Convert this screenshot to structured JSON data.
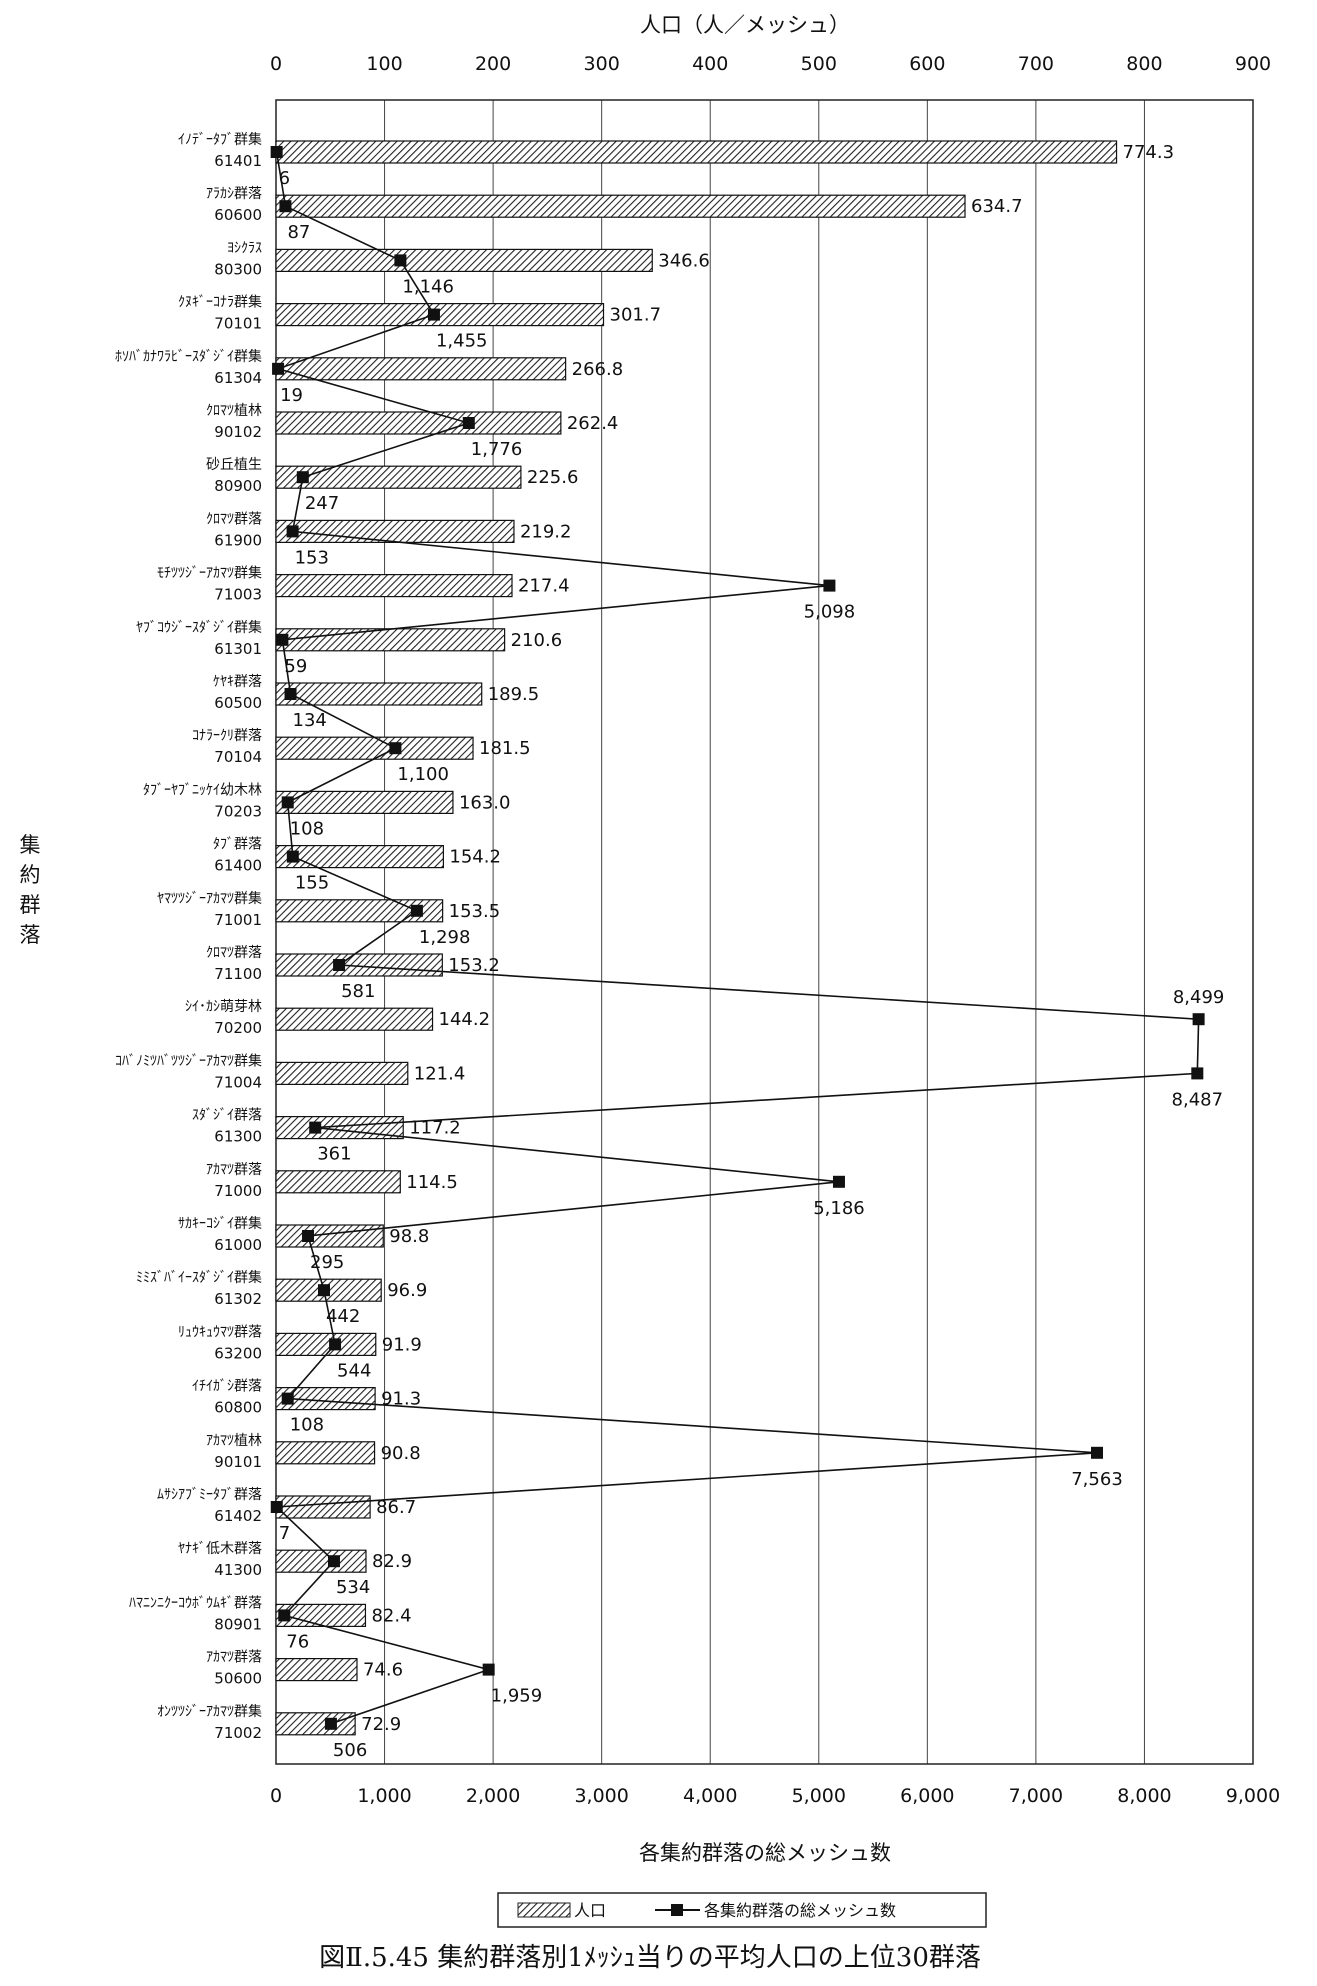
{
  "chart_data": {
    "type": "bar",
    "title": "図Ⅱ.5.45 集約群落別1ﾒｯｼｭ当りの平均人口の上位30群落",
    "top_axis_label": "人口（人／メッシュ）",
    "bottom_axis_label": "各集約群落の総メッシュ数",
    "y_axis_label": "集約群落",
    "top_ticks": [
      "0",
      "100",
      "200",
      "300",
      "400",
      "500",
      "600",
      "700",
      "800",
      "900"
    ],
    "bottom_ticks": [
      "0",
      "1,000",
      "2,000",
      "3,000",
      "4,000",
      "5,000",
      "6,000",
      "7,000",
      "8,000",
      "9,000"
    ],
    "top_range": [
      0,
      900
    ],
    "bottom_range": [
      0,
      9000
    ],
    "legend": {
      "bar_label": "人口",
      "line_label": "各集約群落の総メッシュ数",
      "placement": "bottom-center"
    },
    "categories": [
      {
        "name": "ｲﾉﾃﾞｰﾀﾌﾞ群集",
        "code": "61401"
      },
      {
        "name": "ｱﾗｶｼ群落",
        "code": "60600"
      },
      {
        "name": "ﾖｼｸﾗｽ",
        "code": "80300"
      },
      {
        "name": "ｸﾇｷﾞｰｺﾅﾗ群集",
        "code": "70101"
      },
      {
        "name": "ﾎｿﾊﾞｶﾅﾜﾗﾋﾞｰｽﾀﾞｼﾞｲ群集",
        "code": "61304"
      },
      {
        "name": "ｸﾛﾏﾂ植林",
        "code": "90102"
      },
      {
        "name": "砂丘植生",
        "code": "80900"
      },
      {
        "name": "ｸﾛﾏﾂ群落",
        "code": "61900"
      },
      {
        "name": "ﾓﾁﾂﾂｼﾞｰｱｶﾏﾂ群集",
        "code": "71003"
      },
      {
        "name": "ﾔﾌﾞｺｳｼﾞｰｽﾀﾞｼﾞｲ群集",
        "code": "61301"
      },
      {
        "name": "ｹﾔｷ群落",
        "code": "60500"
      },
      {
        "name": "ｺﾅﾗｰｸﾘ群落",
        "code": "70104"
      },
      {
        "name": "ﾀﾌﾞｰﾔﾌﾞﾆｯｹｲ幼木林",
        "code": "70203"
      },
      {
        "name": "ﾀﾌﾞ群落",
        "code": "61400"
      },
      {
        "name": "ﾔﾏﾂﾂｼﾞｰｱｶﾏﾂ群集",
        "code": "71001"
      },
      {
        "name": "ｸﾛﾏﾂ群落",
        "code": "71100"
      },
      {
        "name": "ｼｲ･ｶｼ萌芽林",
        "code": "70200"
      },
      {
        "name": "ｺﾊﾞﾉﾐﾂﾊﾞﾂﾂｼﾞｰｱｶﾏﾂ群集",
        "code": "71004"
      },
      {
        "name": "ｽﾀﾞｼﾞｲ群落",
        "code": "61300"
      },
      {
        "name": "ｱｶﾏﾂ群落",
        "code": "71000"
      },
      {
        "name": "ｻｶｷｰｺｼﾞｲ群集",
        "code": "61000"
      },
      {
        "name": "ﾐﾐｽﾞﾊﾞｲｰｽﾀﾞｼﾞｲ群集",
        "code": "61302"
      },
      {
        "name": "ﾘｭｳｷｭｳﾏﾂ群落",
        "code": "63200"
      },
      {
        "name": "ｲﾁｲｶﾞｼ群落",
        "code": "60800"
      },
      {
        "name": "ｱｶﾏﾂ植林",
        "code": "90101"
      },
      {
        "name": "ﾑｻｼｱﾌﾞﾐｰﾀﾌﾞ群落",
        "code": "61402"
      },
      {
        "name": "ﾔﾅｷﾞ低木群落",
        "code": "41300"
      },
      {
        "name": "ﾊﾏﾆﾝﾆｸｰｺｳﾎﾞｳﾑｷﾞ群落",
        "code": "80901"
      },
      {
        "name": "ｱｶﾏﾂ群落",
        "code": "50600"
      },
      {
        "name": "ｵﾝﾂﾂｼﾞｰｱｶﾏﾂ群集",
        "code": "71002"
      }
    ],
    "series": [
      {
        "name": "人口",
        "axis": "top",
        "type": "bar",
        "values": [
          774.3,
          634.7,
          346.6,
          301.7,
          266.8,
          262.4,
          225.6,
          219.2,
          217.4,
          210.6,
          189.5,
          181.5,
          163.0,
          154.2,
          153.5,
          153.2,
          144.2,
          121.4,
          117.2,
          114.5,
          98.8,
          96.9,
          91.9,
          91.3,
          90.8,
          86.7,
          82.9,
          82.4,
          74.6,
          72.9
        ],
        "labels": [
          "774.3",
          "634.7",
          "346.6",
          "301.7",
          "266.8",
          "262.4",
          "225.6",
          "219.2",
          "217.4",
          "210.6",
          "189.5",
          "181.5",
          "163.0",
          "154.2",
          "153.5",
          "153.2",
          "144.2",
          "121.4",
          "117.2",
          "114.5",
          "98.8",
          "96.9",
          "91.9",
          "91.3",
          "90.8",
          "86.7",
          "82.9",
          "82.4",
          "74.6",
          "72.9"
        ]
      },
      {
        "name": "各集約群落の総メッシュ数",
        "axis": "bottom",
        "type": "line",
        "values": [
          6,
          87,
          1146,
          1455,
          19,
          1776,
          247,
          153,
          5098,
          59,
          134,
          1100,
          108,
          155,
          1298,
          581,
          8499,
          8487,
          361,
          5186,
          295,
          442,
          544,
          108,
          7563,
          7,
          534,
          76,
          1959,
          506
        ],
        "labels": [
          "6",
          "87",
          "1,146",
          "1,455",
          "19",
          "1,776",
          "247",
          "153",
          "5,098",
          "59",
          "134",
          "1,100",
          "108",
          "155",
          "1,298",
          "581",
          "8,499",
          "8,487",
          "361",
          "5,186",
          "295",
          "442",
          "544",
          "108",
          "7,563",
          "7",
          "534",
          "76",
          "1,959",
          "506"
        ]
      }
    ],
    "grid": {
      "vertical": true,
      "horizontal": false
    }
  }
}
